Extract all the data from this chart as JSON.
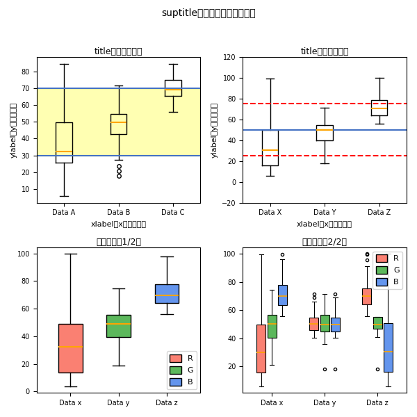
{
  "suptitle": "suptitle【タイトル（全体）】",
  "ax1": {
    "title": "title【タイトル】",
    "xlabel": "xlabel【x軸ラベル】",
    "ylabel": "ylabel【y軸ラベル】",
    "categories": [
      "Data A",
      "Data B",
      "Data C"
    ],
    "hline1": 30,
    "hline2": 70,
    "hline_color": "#4472C4",
    "bg_color": "#FFFACD"
  },
  "ax2": {
    "title": "title【タイトル】",
    "xlabel": "xlabel【x軸ラベル】",
    "ylabel": "ylabel【y軸ラベル】",
    "categories": [
      "Data X",
      "Data Y",
      "Data Z"
    ],
    "hline_solid": 50,
    "hline_solid_color": "#4472C4",
    "hline_dashed1": 75,
    "hline_dashed2": 25,
    "hline_dashed_color": "#FF0000",
    "ylim": [
      -20,
      120
    ]
  },
  "ax3": {
    "title": "凡例付き（1/2）",
    "categories": [
      "Data x",
      "Data y",
      "Data z"
    ],
    "colors": {
      "R": "#FA8072",
      "G": "#5CB85C",
      "B": "#6495ED"
    }
  },
  "ax4": {
    "title": "凡例付き（2/2）",
    "categories": [
      "Data x",
      "Data y",
      "Data z"
    ],
    "colors": {
      "R": "#FA8072",
      "G": "#5CB85C",
      "B": "#6495ED"
    }
  }
}
